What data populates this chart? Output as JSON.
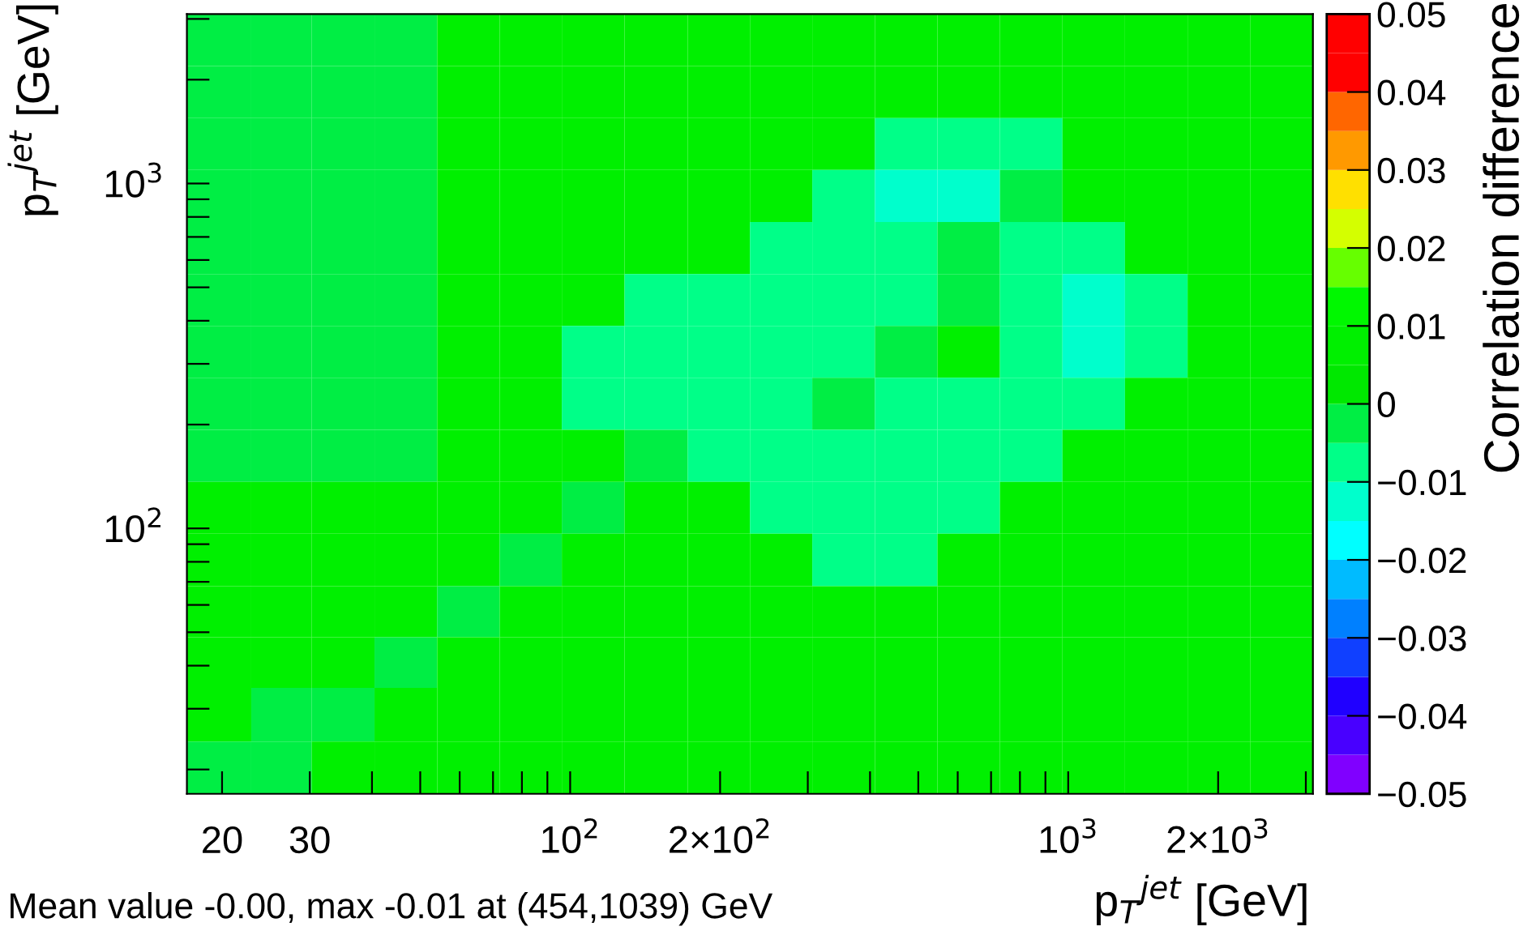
{
  "chart_data": {
    "type": "heatmap",
    "xlabel": "p$_{T}$$^{jet}$ [GeV]",
    "ylabel": "p$_{T}$$^{jet}$ [GeV]",
    "clabel": "Correlation difference",
    "annotations": [
      "Mean value -0.00, max -0.01 at (454,1039) GeV"
    ],
    "log": "xy",
    "x": [
      20,
      26.2,
      35.0,
      46.8,
      62.5,
      83.4,
      111,
      149,
      199,
      265,
      354,
      473,
      631,
      843,
      1125,
      1503,
      2007,
      2680
    ],
    "y": [
      2606,
      1841,
      1301,
      920,
      650,
      459,
      325,
      230,
      162,
      115,
      81,
      57,
      41,
      29,
      20
    ],
    "cells": [
      [
        -0.002,
        -0.002,
        -0.002,
        -0.002,
        0.005,
        0.005,
        0.005,
        0.005,
        0.005,
        0.005,
        0.005,
        0.005,
        0.005,
        0.005,
        0.005,
        0.005,
        0.005,
        0.005
      ],
      [
        -0.002,
        -0.002,
        -0.002,
        -0.002,
        0.005,
        0.005,
        0.005,
        0.005,
        0.005,
        0.005,
        0.005,
        0.005,
        0.005,
        0.005,
        0.005,
        0.005,
        0.005,
        0.005
      ],
      [
        -0.002,
        -0.002,
        -0.002,
        -0.002,
        0.005,
        0.005,
        0.005,
        0.005,
        0.005,
        0.005,
        0.005,
        -0.007,
        -0.007,
        -0.007,
        0.005,
        0.005,
        0.005,
        0.005
      ],
      [
        -0.002,
        -0.002,
        -0.002,
        -0.002,
        0.005,
        0.005,
        0.005,
        0.005,
        0.005,
        0.005,
        -0.007,
        -0.012,
        -0.012,
        -0.002,
        0.005,
        0.005,
        0.005,
        0.005
      ],
      [
        -0.002,
        -0.002,
        -0.002,
        -0.002,
        0.005,
        0.005,
        0.005,
        0.005,
        0.005,
        -0.007,
        -0.007,
        -0.007,
        -0.002,
        -0.007,
        -0.007,
        0.005,
        0.005,
        0.005
      ],
      [
        -0.002,
        -0.002,
        -0.002,
        -0.002,
        0.005,
        0.005,
        0.005,
        -0.007,
        -0.007,
        -0.007,
        -0.007,
        -0.007,
        -0.002,
        -0.007,
        -0.012,
        -0.007,
        0.005,
        0.005
      ],
      [
        -0.002,
        -0.002,
        -0.002,
        -0.002,
        0.005,
        0.005,
        -0.007,
        -0.007,
        -0.007,
        -0.007,
        -0.007,
        -0.002,
        0.005,
        -0.007,
        -0.012,
        -0.007,
        0.005,
        0.005
      ],
      [
        -0.002,
        -0.002,
        -0.002,
        -0.002,
        0.005,
        0.005,
        -0.007,
        -0.007,
        -0.007,
        -0.007,
        -0.002,
        -0.007,
        -0.007,
        -0.007,
        -0.007,
        0.005,
        0.005,
        0.005
      ],
      [
        -0.002,
        -0.002,
        -0.002,
        -0.002,
        0.005,
        0.005,
        0.005,
        -0.002,
        -0.007,
        -0.007,
        -0.007,
        -0.007,
        -0.007,
        -0.007,
        0.005,
        0.005,
        0.005,
        0.005
      ],
      [
        0.005,
        0.005,
        0.005,
        0.005,
        0.005,
        0.005,
        -0.002,
        0.005,
        0.005,
        -0.007,
        -0.007,
        -0.007,
        -0.007,
        0.005,
        0.005,
        0.005,
        0.005,
        0.005
      ],
      [
        0.005,
        0.005,
        0.005,
        0.005,
        0.005,
        -0.002,
        0.005,
        0.005,
        0.005,
        0.005,
        -0.007,
        -0.007,
        0.005,
        0.005,
        0.005,
        0.005,
        0.005,
        0.005
      ],
      [
        0.005,
        0.005,
        0.005,
        0.005,
        -0.002,
        0.005,
        0.005,
        0.005,
        0.005,
        0.005,
        0.005,
        0.005,
        0.005,
        0.005,
        0.005,
        0.005,
        0.005,
        0.005
      ],
      [
        0.005,
        0.005,
        0.005,
        -0.002,
        0.005,
        0.005,
        0.005,
        0.005,
        0.005,
        0.005,
        0.005,
        0.005,
        0.005,
        0.005,
        0.005,
        0.005,
        0.005,
        0.005
      ],
      [
        0.005,
        -0.002,
        -0.002,
        0.005,
        0.005,
        0.005,
        0.005,
        0.005,
        0.005,
        0.005,
        0.005,
        0.005,
        0.005,
        0.005,
        0.005,
        0.005,
        0.005,
        0.005
      ],
      [
        -0.002,
        -0.002,
        0.005,
        0.005,
        0.005,
        0.005,
        0.005,
        0.005,
        0.005,
        0.005,
        0.005,
        0.005,
        0.005,
        0.005,
        0.005,
        0.005,
        0.005,
        0.005
      ]
    ],
    "colors": [
      "#8000ff",
      "#4800ff",
      "#2000ff",
      "#1040ff",
      "#0080ff",
      "#00bbff",
      "#00ffff",
      "#00ffcc",
      "#00ff88",
      "#00ee44",
      "#00e800",
      "#00f000",
      "#00f800",
      "#66ff00",
      "#d4ff00",
      "#ffe000",
      "#ff9900",
      "#ff6600",
      "#ff0000",
      "#ff0000"
    ],
    "clim": [
      -0.05,
      0.05
    ],
    "cticks": [
      {
        "value": -0.05,
        "label": "−0.05"
      },
      {
        "value": -0.04,
        "label": "−0.04"
      },
      {
        "value": -0.03,
        "label": "−0.03"
      },
      {
        "value": -0.02,
        "label": "−0.02"
      },
      {
        "value": -0.01,
        "label": "−0.01"
      },
      0,
      0.01,
      0.02,
      0.03,
      0.04,
      0.05
    ],
    "xlim": [
      17,
      3100
    ],
    "ylim": [
      17,
      3100
    ],
    "xticks": [
      20,
      30,
      {
        "value": 40,
        "label": null
      },
      {
        "value": 50,
        "label": null
      },
      {
        "value": 60,
        "label": null
      },
      {
        "value": 70,
        "label": null
      },
      {
        "value": 80,
        "label": null
      },
      {
        "value": 90,
        "label": null
      },
      {
        "value": 100,
        "label": "10$^{2}$"
      },
      {
        "value": 200,
        "label": "2×10$^{2}$"
      },
      {
        "value": 300,
        "label": null
      },
      {
        "value": 400,
        "label": null
      },
      {
        "value": 500,
        "label": null
      },
      {
        "value": 600,
        "label": null
      },
      {
        "value": 700,
        "label": null
      },
      {
        "value": 800,
        "label": null
      },
      {
        "value": 900,
        "label": null
      },
      {
        "value": 1000,
        "label": "10$^{3}$"
      },
      {
        "value": 2000,
        "label": "2×10$^{3}$"
      },
      {
        "value": 3000,
        "label": null
      }
    ],
    "yticks": [
      {
        "value": 20,
        "label": null
      },
      {
        "value": 30,
        "label": null
      },
      {
        "value": 40,
        "label": null
      },
      {
        "value": 50,
        "label": null
      },
      {
        "value": 60,
        "label": null
      },
      {
        "value": 70,
        "label": null
      },
      {
        "value": 80,
        "label": null
      },
      {
        "value": 90,
        "label": null
      },
      {
        "value": 100,
        "label": "10$^{2}$"
      },
      {
        "value": 200,
        "label": null
      },
      {
        "value": 300,
        "label": null
      },
      {
        "value": 400,
        "label": null
      },
      {
        "value": 500,
        "label": null
      },
      {
        "value": 600,
        "label": null
      },
      {
        "value": 700,
        "label": null
      },
      {
        "value": 800,
        "label": null
      },
      {
        "value": 900,
        "label": null
      },
      {
        "value": 1000,
        "label": "10$^{3}$"
      },
      {
        "value": 2000,
        "label": null
      },
      {
        "value": 3000,
        "label": null
      }
    ]
  }
}
